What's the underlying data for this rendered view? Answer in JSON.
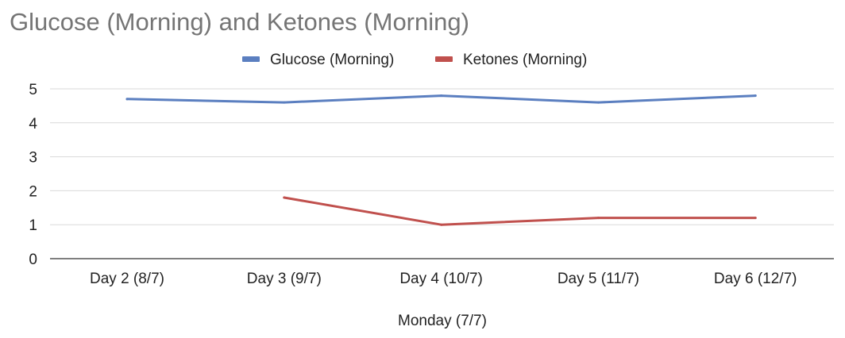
{
  "chart_data": {
    "type": "line",
    "title": "Glucose (Morning) and Ketones (Morning)",
    "xlabel": "Monday (7/7)",
    "ylabel": "",
    "categories": [
      "Day 2 (8/7)",
      "Day 3 (9/7)",
      "Day 4 (10/7)",
      "Day 5 (11/7)",
      "Day 6 (12/7)"
    ],
    "ylim": [
      0,
      5
    ],
    "yticks": [
      "0",
      "1",
      "2",
      "3",
      "4",
      "5"
    ],
    "grid": true,
    "legend_position": "top",
    "series": [
      {
        "name": "Glucose (Morning)",
        "color": "#5b7fc0",
        "values": [
          4.7,
          4.6,
          4.8,
          4.6,
          4.8
        ]
      },
      {
        "name": "Ketones (Morning)",
        "color": "#c0504d",
        "values": [
          null,
          1.8,
          1.0,
          1.2,
          1.2
        ]
      }
    ]
  }
}
